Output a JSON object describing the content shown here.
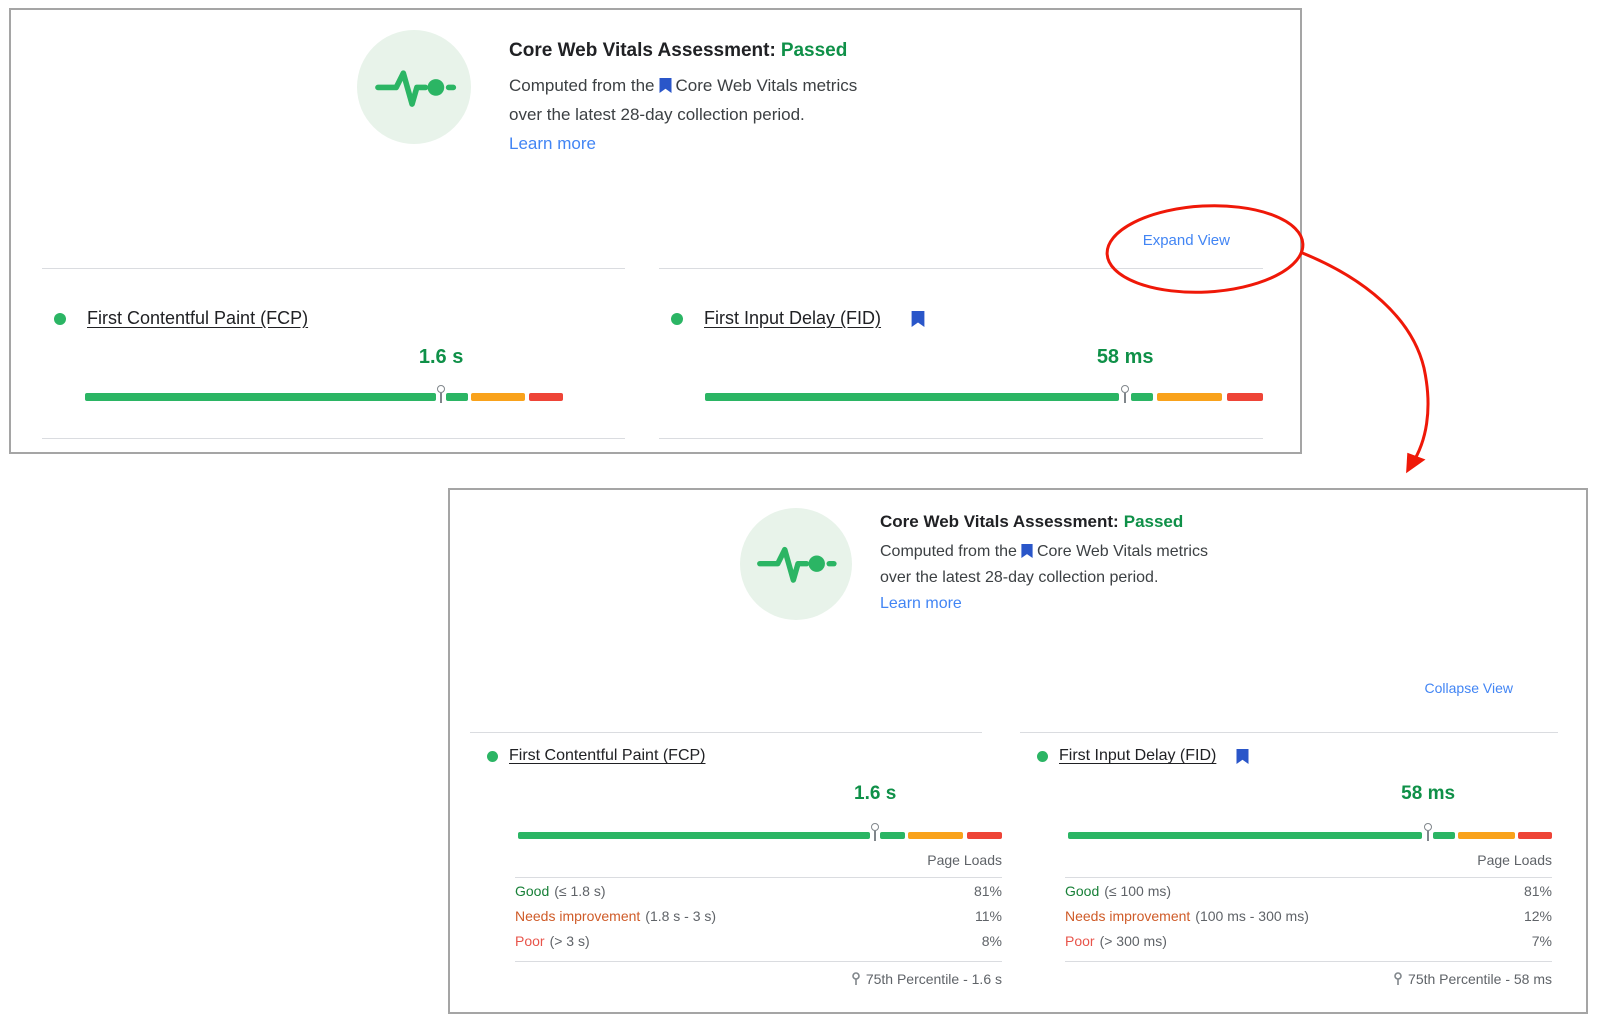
{
  "colors": {
    "good": "#2bb564",
    "ni": "#f9a21b",
    "poor": "#ee4437",
    "gap": "transparent",
    "link_blue": "#4285f4",
    "status_green": "#0f9048",
    "good_text": "#188038",
    "needs_improvement_text": "#cf5b28",
    "poor_text": "#e8544a",
    "annotation_red": "#ef1808",
    "bookmark_blue": "#2a56c9",
    "gray_text": "#5f6368",
    "dark_text": "#202124",
    "divider": "#dadce0",
    "panel_border": "#a5a5a5",
    "icon_circle_bg": "#e8f3ea"
  },
  "icons": {
    "pulse": "pulse-heartbeat-icon",
    "bookmark": "bookmark-icon",
    "percentile_pin": "percentile-pin-icon",
    "status_dot": "good-status-dot"
  },
  "header": {
    "title": "Core Web Vitals Assessment:",
    "status": "Passed",
    "desc_before_icon": "Computed from the",
    "desc_after_icon": "Core Web Vitals metrics",
    "desc_line2": "over the latest 28-day collection period.",
    "learn_more": "Learn more"
  },
  "collapsed_panel": {
    "toggle_label": "Expand View",
    "metrics": {
      "fcp": {
        "name": "First Contentful Paint (FCP)",
        "value": "1.6 s",
        "bar": {
          "pin_pct": 74.5,
          "segments": [
            {
              "color": "good",
              "pct": 73.4
            },
            {
              "color": "gap",
              "pct": 2.2
            },
            {
              "color": "good",
              "pct": 4.6
            },
            {
              "color": "gap",
              "pct": 0.6
            },
            {
              "color": "ni",
              "pct": 11.2
            },
            {
              "color": "gap",
              "pct": 0.8
            },
            {
              "color": "poor",
              "pct": 7.2
            }
          ]
        }
      },
      "fid": {
        "name": "First Input Delay (FID)",
        "value": "58 ms",
        "bar": {
          "pin_pct": 75.3,
          "segments": [
            {
              "color": "good",
              "pct": 74.2
            },
            {
              "color": "gap",
              "pct": 2.2
            },
            {
              "color": "good",
              "pct": 3.9
            },
            {
              "color": "gap",
              "pct": 0.7
            },
            {
              "color": "ni",
              "pct": 11.6
            },
            {
              "color": "gap",
              "pct": 0.9
            },
            {
              "color": "poor",
              "pct": 6.5
            }
          ]
        }
      }
    }
  },
  "expanded_panel": {
    "toggle_label": "Collapse View",
    "metrics": {
      "fcp": {
        "name": "First Contentful Paint (FCP)",
        "value": "1.6 s",
        "bar": {
          "pin_pct": 73.8,
          "segments": [
            {
              "color": "good",
              "pct": 72.7
            },
            {
              "color": "gap",
              "pct": 2.1
            },
            {
              "color": "good",
              "pct": 5.2
            },
            {
              "color": "gap",
              "pct": 0.6
            },
            {
              "color": "ni",
              "pct": 11.4
            },
            {
              "color": "gap",
              "pct": 0.8
            },
            {
              "color": "poor",
              "pct": 7.2
            }
          ]
        },
        "page_loads_label": "Page Loads",
        "rows": [
          {
            "keyword": "Good",
            "range": "(≤ 1.8 s)",
            "value": "81%"
          },
          {
            "keyword": "Needs improvement",
            "range": "(1.8 s - 3 s)",
            "value": "11%"
          },
          {
            "keyword": "Poor",
            "range": "(> 3 s)",
            "value": "8%"
          }
        ],
        "percentile": "75th Percentile - 1.6 s"
      },
      "fid": {
        "name": "First Input Delay (FID)",
        "value": "58 ms",
        "bar": {
          "pin_pct": 74.4,
          "segments": [
            {
              "color": "good",
              "pct": 73.1
            },
            {
              "color": "gap",
              "pct": 2.3
            },
            {
              "color": "good",
              "pct": 4.5
            },
            {
              "color": "gap",
              "pct": 0.6
            },
            {
              "color": "ni",
              "pct": 11.8
            },
            {
              "color": "gap",
              "pct": 0.6
            },
            {
              "color": "poor",
              "pct": 7.1
            }
          ]
        },
        "page_loads_label": "Page Loads",
        "rows": [
          {
            "keyword": "Good",
            "range": "(≤ 100 ms)",
            "value": "81%"
          },
          {
            "keyword": "Needs improvement",
            "range": "(100 ms - 300 ms)",
            "value": "12%"
          },
          {
            "keyword": "Poor",
            "range": "(> 300 ms)",
            "value": "7%"
          }
        ],
        "percentile": "75th Percentile - 58 ms"
      }
    }
  }
}
